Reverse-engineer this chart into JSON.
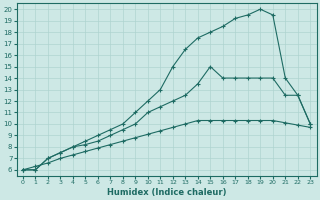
{
  "xlabel": "Humidex (Indice chaleur)",
  "ylabel": "",
  "bg_color": "#cde8e5",
  "grid_color": "#afd4d0",
  "line_color": "#1e6b63",
  "xlim": [
    -0.5,
    23.5
  ],
  "ylim": [
    5.5,
    20.5
  ],
  "xticks": [
    0,
    1,
    2,
    3,
    4,
    5,
    6,
    7,
    8,
    9,
    10,
    11,
    12,
    13,
    14,
    15,
    16,
    17,
    18,
    19,
    20,
    21,
    22,
    23
  ],
  "yticks": [
    6,
    7,
    8,
    9,
    10,
    11,
    12,
    13,
    14,
    15,
    16,
    17,
    18,
    19,
    20
  ],
  "line1_x": [
    0,
    1,
    2,
    3,
    4,
    5,
    6,
    7,
    8,
    9,
    10,
    11,
    12,
    13,
    14,
    15,
    16,
    17,
    18,
    19,
    20,
    21,
    22,
    23
  ],
  "line1_y": [
    6,
    6,
    7,
    7.5,
    8,
    8.5,
    9,
    9.5,
    10,
    11,
    12,
    13,
    15,
    16.5,
    17.5,
    18,
    18.5,
    19.2,
    19.5,
    20,
    19.5,
    14,
    12.5,
    10
  ],
  "line2_x": [
    0,
    1,
    2,
    3,
    4,
    5,
    6,
    7,
    8,
    9,
    10,
    11,
    12,
    13,
    14,
    15,
    16,
    17,
    18,
    19,
    20,
    21,
    22,
    23
  ],
  "line2_y": [
    6,
    6,
    7,
    7.5,
    8,
    8.2,
    8.5,
    9,
    9.5,
    10,
    11,
    11.5,
    12,
    12.5,
    13.5,
    15,
    14,
    14,
    14,
    14,
    14,
    12.5,
    12.5,
    10
  ],
  "line3_x": [
    0,
    1,
    2,
    3,
    4,
    5,
    6,
    7,
    8,
    9,
    10,
    11,
    12,
    13,
    14,
    15,
    16,
    17,
    18,
    19,
    20,
    21,
    22,
    23
  ],
  "line3_y": [
    6,
    6.3,
    6.6,
    7,
    7.3,
    7.6,
    7.9,
    8.2,
    8.5,
    8.8,
    9.1,
    9.4,
    9.7,
    10,
    10.3,
    10.3,
    10.3,
    10.3,
    10.3,
    10.3,
    10.3,
    10.1,
    9.9,
    9.7
  ]
}
